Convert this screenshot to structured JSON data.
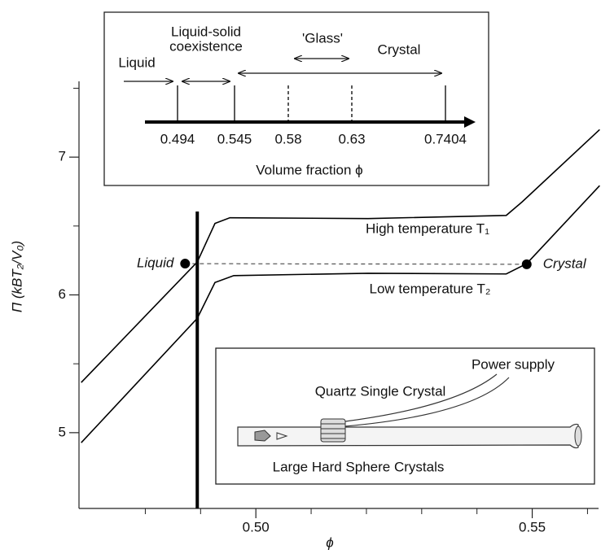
{
  "chart_data": {
    "type": "line",
    "x_label": "ϕ",
    "y_label": "Π (kBT₂/V₀)",
    "xlim": [
      0.468,
      0.562
    ],
    "ylim": [
      4.45,
      7.55
    ],
    "xticks": [
      {
        "value": 0.5,
        "label": "0.50"
      },
      0.55
    ],
    "xminor_ticks": [
      0.48,
      0.49,
      0.51,
      0.52,
      0.53,
      0.54,
      0.56
    ],
    "yticks": [
      5,
      6,
      7
    ],
    "yminor_ticks": [
      5.5,
      6.5,
      7.5
    ],
    "series": [
      {
        "name": "High temperature T₁",
        "color": "#000000",
        "x": [
          0.4684,
          0.4894,
          0.4926,
          0.4953,
          0.5203,
          0.5453,
          0.5482,
          0.5622
        ],
        "values": [
          5.364,
          6.239,
          6.519,
          6.56,
          6.554,
          6.577,
          6.676,
          7.2
        ]
      },
      {
        "name": "Low temperature T₂",
        "color": "#000000",
        "x": [
          0.4684,
          0.4894,
          0.4926,
          0.496,
          0.5203,
          0.5453,
          0.549,
          0.5622
        ],
        "values": [
          4.927,
          5.83,
          6.09,
          6.14,
          6.157,
          6.152,
          6.227,
          6.793
        ]
      }
    ],
    "points": [
      {
        "label": "Liquid",
        "x": 0.4872,
        "y": 6.227
      },
      {
        "label": "Crystal",
        "x": 0.549,
        "y": 6.222
      }
    ],
    "vline_x": 0.4894
  },
  "phase_inset": {
    "axis_label": "Volume fraction ϕ",
    "ticks": [
      "0.494",
      "0.545",
      "0.58",
      "0.63",
      "0.7404"
    ],
    "liquid": "Liquid",
    "coexistence": [
      "Liquid-solid",
      "coexistence"
    ],
    "glass": "'Glass'",
    "crystal": "Crystal"
  },
  "apparatus_inset": {
    "power": "Power supply",
    "quartz": "Quartz Single Crystal",
    "crystals": "Large Hard Sphere Crystals"
  }
}
